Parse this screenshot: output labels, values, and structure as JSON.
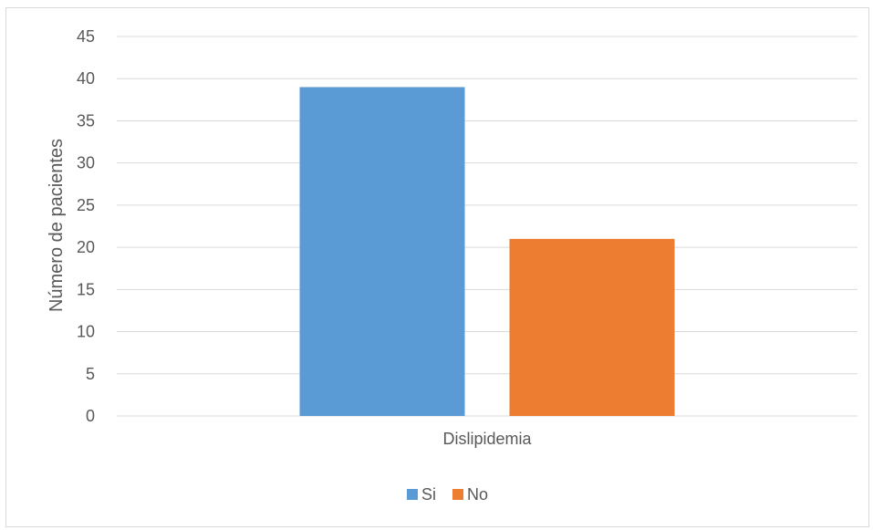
{
  "chart_data": {
    "type": "bar",
    "categories": [
      "Dislipidemia"
    ],
    "series": [
      {
        "name": "Si",
        "values": [
          39
        ],
        "color": "#5b9bd5"
      },
      {
        "name": "No",
        "values": [
          21
        ],
        "color": "#ed7d31"
      }
    ],
    "ylabel": "Número de pacientes",
    "ylim": [
      0,
      45
    ],
    "yticks": [
      0,
      5,
      10,
      15,
      20,
      25,
      30,
      35,
      40,
      45
    ],
    "grid": true,
    "legend_position": "bottom",
    "gridline_color": "#d9d9d9",
    "text_color": "#595959"
  }
}
